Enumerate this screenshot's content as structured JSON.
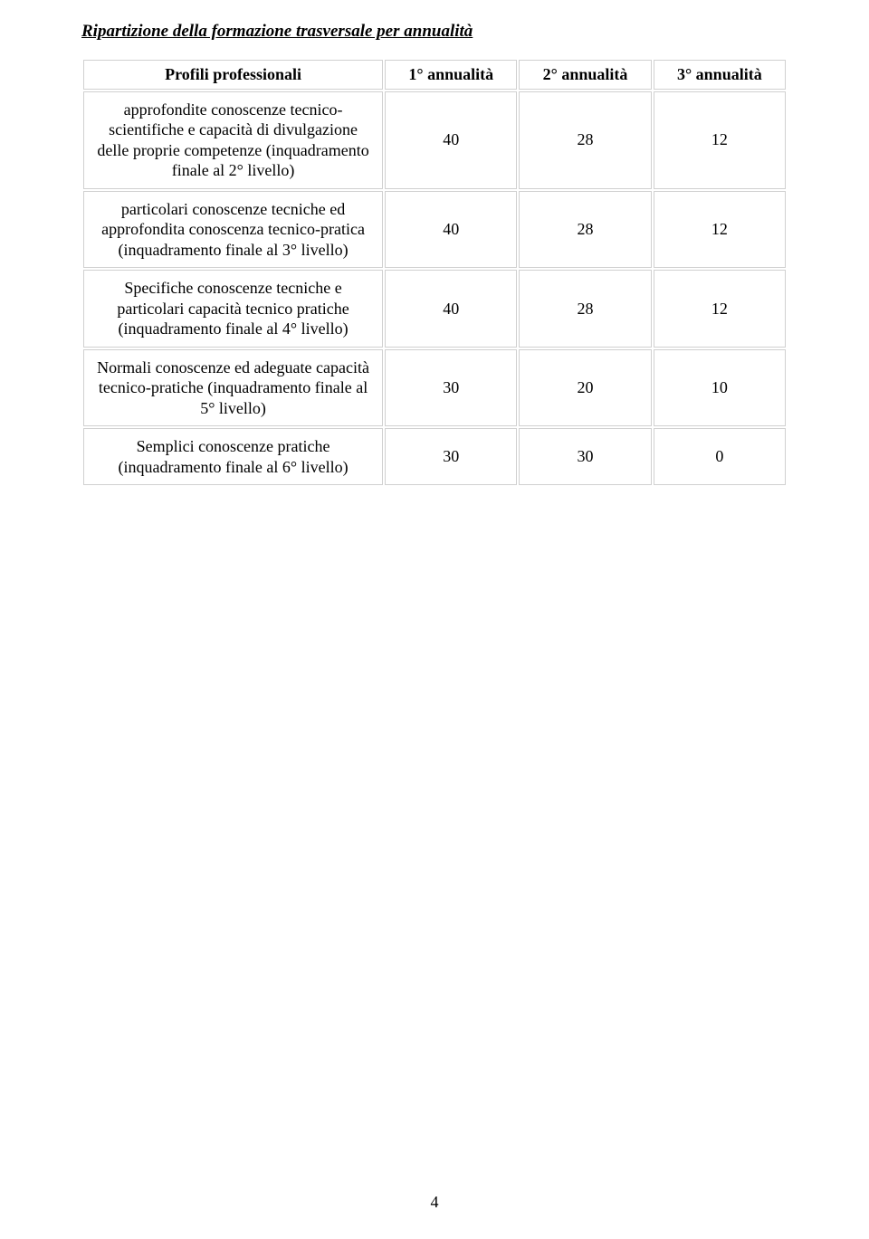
{
  "title": "Ripartizione della formazione trasversale per annualità",
  "columns": {
    "profili": "Profili professionali",
    "a1": "1° annualità",
    "a2": "2° annualità",
    "a3": "3° annualità"
  },
  "rows": [
    {
      "desc": "approfondite conoscenze tecnico-\nscientifiche e capacità di divulgazione\ndelle proprie competenze\n(inquadramento finale al 2° livello)",
      "a1": "40",
      "a2": "28",
      "a3": "12"
    },
    {
      "desc": "particolari conoscenze tecniche ed\napprofondita conoscenza tecnico-pratica\n(inquadramento finale al 3° livello)",
      "a1": "40",
      "a2": "28",
      "a3": "12"
    },
    {
      "desc": "Specifiche conoscenze tecniche e\nparticolari capacità tecnico pratiche\n(inquadramento finale al 4° livello)",
      "a1": "40",
      "a2": "28",
      "a3": "12"
    },
    {
      "desc": "Normali conoscenze ed adeguate\ncapacità tecnico-pratiche\n(inquadramento finale al 5° livello)",
      "a1": "30",
      "a2": "20",
      "a3": "10"
    },
    {
      "desc": "Semplici conoscenze pratiche\n(inquadramento finale al 6° livello)",
      "a1": "30",
      "a2": "30",
      "a3": "0"
    }
  ],
  "pageNumber": "4",
  "style": {
    "background": "#ffffff",
    "border_color": "#d0d0d0",
    "font_family": "Times New Roman",
    "title_fontsize": 19,
    "cell_fontsize": 18,
    "col_widths_pct": [
      43,
      19,
      19,
      19
    ]
  }
}
